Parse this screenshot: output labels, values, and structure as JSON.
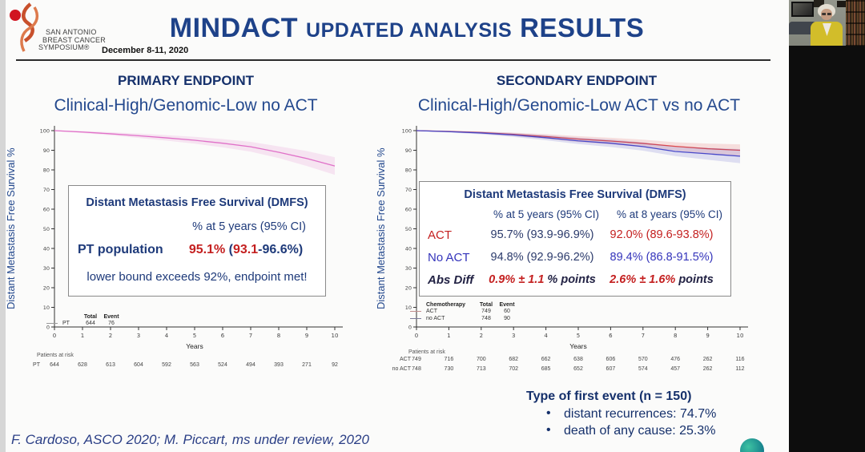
{
  "header": {
    "logo_line1": "SAN ANTONIO",
    "logo_line2": "BREAST CANCER",
    "logo_line3": "SYMPOSIUM®",
    "date": "December 8-11, 2020",
    "title_part1": "MINDACT",
    "title_part2": "UPDATED ANALYSIS",
    "title_part3": "RESULTS"
  },
  "colors": {
    "navy_title": "#1e4289",
    "heading_navy": "#15306b",
    "red": "#c42020",
    "blue": "#3434bb",
    "pink_curve": "#e070c8",
    "act_red_curve": "#e04848",
    "noact_blue_curve": "#4848c8"
  },
  "left_panel": {
    "heading": "PRIMARY ENDPOINT",
    "subtitle": "Clinical-High/Genomic-Low no ACT",
    "ylabel": "Distant Metastasis Free Survival %",
    "xlabel": "Years",
    "info_box": {
      "title": "Distant Metastasis Free Survival (DMFS)",
      "col_header": "% at 5 years (95% CI)",
      "row_label": "PT population",
      "value_parts": [
        {
          "t": "95.1%",
          "cls": "v-red"
        },
        {
          "t": " (",
          "cls": "v-navy"
        },
        {
          "t": "93.1",
          "cls": "v-red"
        },
        {
          "t": "-96.6%)",
          "cls": "v-navy"
        }
      ],
      "note": "lower bound exceeds 92%, endpoint met!"
    },
    "legend": {
      "col_total": "Total",
      "col_event": "Event",
      "rows": [
        {
          "label": "PT",
          "total": "644",
          "event": "76"
        }
      ]
    },
    "patients_at_risk_label": "Patients at risk",
    "risk_rows": [
      {
        "label": "PT",
        "values": [
          "644",
          "628",
          "613",
          "604",
          "592",
          "563",
          "524",
          "494",
          "393",
          "271",
          "92"
        ]
      }
    ]
  },
  "right_panel": {
    "heading": "SECONDARY ENDPOINT",
    "subtitle": "Clinical-High/Genomic-Low ACT vs no ACT",
    "ylabel": "Distant Metastasis Free Survival %",
    "xlabel": "Years",
    "table": {
      "title": "Distant Metastasis Free Survival (DMFS)",
      "col1": "% at 5 years (95% CI)",
      "col2": "% at 8 years (95% CI)",
      "rows": [
        {
          "label": "ACT",
          "label_class": "c-red",
          "v5": "95.7% (93.9-96.9%)",
          "v5_class": "c-navy",
          "v8": "92.0% (89.6-93.8%)",
          "v8_class": "c-red"
        },
        {
          "label": "No ACT",
          "label_class": "c-blue",
          "v5": "94.8% (92.9-96.2%)",
          "v5_class": "c-navy",
          "v8": "89.4% (86.8-91.5%)",
          "v8_class": "c-blue"
        },
        {
          "label": "Abs Diff",
          "label_class": "c-darkit",
          "v5": "0.9% ± 1.1",
          "v5_class": "c-redit",
          "v5_suffix": " % points",
          "v8": "2.6% ± 1.6%",
          "v8_class": "c-redit",
          "v8_suffix": " points"
        }
      ]
    },
    "legend": {
      "header": "Chemotherapy",
      "col_total": "Total",
      "col_event": "Event",
      "rows": [
        {
          "label": "ACT",
          "total": "749",
          "event": "60"
        },
        {
          "label": "no ACT",
          "total": "748",
          "event": "90"
        }
      ]
    },
    "patients_at_risk_label": "Patients at risk",
    "risk_rows": [
      {
        "label": "ACT",
        "values": [
          "749",
          "716",
          "700",
          "682",
          "662",
          "638",
          "606",
          "570",
          "476",
          "262",
          "116"
        ]
      },
      {
        "label": "no ACT",
        "values": [
          "748",
          "730",
          "713",
          "702",
          "685",
          "652",
          "607",
          "574",
          "457",
          "262",
          "112"
        ]
      }
    ],
    "first_event": {
      "title": "Type of first event (n = 150)",
      "bullets": [
        "distant recurrences: 74.7%",
        "death of any cause:  25.3%"
      ]
    }
  },
  "footer": {
    "citation": "F. Cardoso, ASCO 2020; M. Piccart, ms under review, 2020"
  },
  "chart_data": [
    {
      "type": "line",
      "title": "Clinical-High/Genomic-Low no ACT",
      "xlabel": "Years",
      "ylabel": "Distant Metastasis Free Survival %",
      "xlim": [
        0,
        10
      ],
      "ylim": [
        0,
        100
      ],
      "xticks": [
        0,
        1,
        2,
        3,
        4,
        5,
        6,
        7,
        8,
        9,
        10
      ],
      "yticks": [
        0,
        10,
        20,
        30,
        40,
        50,
        60,
        70,
        80,
        90,
        100
      ],
      "grid": false,
      "legend_position": "bottom-left-inside",
      "series": [
        {
          "name": "PT",
          "color": "#e070c8",
          "x": [
            0,
            1,
            2,
            3,
            4,
            5,
            6,
            7,
            8,
            9,
            10
          ],
          "values": [
            100,
            99.3,
            98.4,
            97.4,
            96.3,
            95.1,
            93.6,
            91.8,
            89.0,
            85.8,
            82.0
          ],
          "band": [
            0.2,
            0.5,
            0.8,
            1.1,
            1.4,
            1.75,
            2.1,
            2.5,
            3.0,
            3.8,
            4.5
          ]
        }
      ]
    },
    {
      "type": "line",
      "title": "Clinical-High/Genomic-Low ACT vs no ACT",
      "xlabel": "Years",
      "ylabel": "Distant Metastasis Free Survival %",
      "xlim": [
        0,
        10
      ],
      "ylim": [
        0,
        100
      ],
      "xticks": [
        0,
        1,
        2,
        3,
        4,
        5,
        6,
        7,
        8,
        9,
        10
      ],
      "yticks": [
        0,
        10,
        20,
        30,
        40,
        50,
        60,
        70,
        80,
        90,
        100
      ],
      "grid": false,
      "legend_position": "bottom-left-inside",
      "series": [
        {
          "name": "ACT",
          "color": "#e04848",
          "x": [
            0,
            1,
            2,
            3,
            4,
            5,
            6,
            7,
            8,
            9,
            10
          ],
          "values": [
            100,
            99.6,
            99.0,
            98.1,
            97.0,
            95.7,
            94.7,
            93.5,
            92.0,
            90.8,
            90.0
          ],
          "band": [
            0.2,
            0.4,
            0.6,
            0.9,
            1.2,
            1.5,
            1.7,
            1.9,
            2.1,
            2.6,
            3.0
          ]
        },
        {
          "name": "no ACT",
          "color": "#4848c8",
          "x": [
            0,
            1,
            2,
            3,
            4,
            5,
            6,
            7,
            8,
            9,
            10
          ],
          "values": [
            100,
            99.5,
            98.8,
            97.8,
            96.4,
            94.8,
            93.6,
            91.9,
            89.4,
            88.2,
            87.0
          ],
          "band": [
            0.2,
            0.4,
            0.7,
            1.0,
            1.3,
            1.65,
            1.9,
            2.1,
            2.35,
            3.0,
            3.6
          ]
        }
      ]
    }
  ]
}
